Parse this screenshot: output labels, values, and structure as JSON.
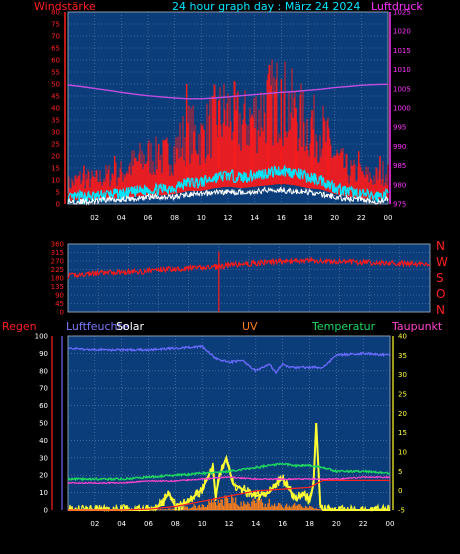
{
  "header": {
    "left_label": "Windstärke",
    "title": "24 hour graph day : März 24 2024",
    "right_label": "Luftdruck"
  },
  "compass": [
    "N",
    "W",
    "S",
    "O",
    "N"
  ],
  "panel3_labels": {
    "regen": "Regen",
    "luftfeuchte": "Luftfeuchte",
    "solar": "Solar",
    "uv": "UV",
    "temperatur": "Temperatur",
    "taupunkt": "Taupunkt"
  },
  "colors": {
    "background": "#000000",
    "plot_bg": "#0b3d7a",
    "grid": "#5f86b7",
    "wind_red": "#ff1a1a",
    "gust_cyan": "#00e5ff",
    "avg_white": "#ffffff",
    "pressure": "#c04de0",
    "humidity": "#6a6aff",
    "solar": "#ffff33",
    "uv": "#ff7f1a",
    "temperature": "#1ed760",
    "dewpoint": "#ff44cc",
    "rain": "#ff2222",
    "title_cyan": "#00e5ff",
    "label_red": "#ff2020",
    "label_magenta": "#ff33ff"
  },
  "chart_data": [
    {
      "type": "line",
      "title": "24 hour graph day : März 24 2024",
      "ylabel": "Windstärke",
      "y2label": "Luftdruck",
      "x_ticks": [
        "02",
        "04",
        "06",
        "08",
        "10",
        "12",
        "14",
        "16",
        "18",
        "20",
        "22",
        "00"
      ],
      "ylim": [
        0,
        80
      ],
      "y_ticks": [
        0,
        5,
        10,
        15,
        20,
        25,
        30,
        35,
        40,
        45,
        50,
        55,
        60,
        65,
        70,
        75,
        80
      ],
      "y2lim": [
        975,
        1025
      ],
      "y2_ticks": [
        975,
        980,
        985,
        990,
        995,
        1000,
        1005,
        1010,
        1015,
        1020,
        1025
      ],
      "series": [
        {
          "name": "Luftdruck",
          "axis": "right",
          "x": [
            0,
            1,
            2,
            3,
            4,
            5,
            6,
            7,
            8,
            9,
            10,
            11,
            12,
            13,
            14,
            15,
            16,
            17,
            18,
            19,
            20,
            21,
            22,
            23,
            24
          ],
          "values": [
            1006.0,
            1005.6,
            1005.1,
            1004.6,
            1004.1,
            1003.6,
            1003.2,
            1002.9,
            1002.6,
            1002.4,
            1002.4,
            1002.6,
            1002.9,
            1003.2,
            1003.5,
            1003.8,
            1004.1,
            1004.3,
            1004.6,
            1004.9,
            1005.3,
            1005.6,
            1005.9,
            1006.1,
            1006.2
          ]
        },
        {
          "name": "Windstärke Böen",
          "axis": "left",
          "x": [
            0,
            1,
            2,
            3,
            4,
            5,
            6,
            7,
            8,
            9,
            10,
            11,
            12,
            13,
            14,
            15,
            16,
            17,
            18,
            19,
            20,
            21,
            22,
            23,
            24
          ],
          "values": [
            8,
            11,
            10,
            12,
            13,
            17,
            20,
            19,
            22,
            30,
            27,
            35,
            38,
            33,
            36,
            42,
            44,
            38,
            32,
            31,
            20,
            14,
            12,
            11,
            14
          ]
        },
        {
          "name": "Windstärke Spitzen",
          "axis": "left",
          "x": [
            1.2,
            3.5,
            6.8,
            8.9,
            10.2,
            11.3,
            12.5,
            13.8,
            15.0,
            16.0,
            17.1,
            18.3,
            19.5,
            21.8,
            23.4
          ],
          "values": [
            16,
            20,
            25,
            50,
            31,
            43,
            50,
            37,
            45,
            52,
            40,
            39,
            32,
            22,
            20
          ]
        },
        {
          "name": "Windstärke Mittel",
          "axis": "left",
          "x": [
            0,
            1,
            2,
            3,
            4,
            5,
            6,
            7,
            8,
            9,
            10,
            11,
            12,
            13,
            14,
            15,
            16,
            17,
            18,
            19,
            20,
            21,
            22,
            23,
            24
          ],
          "values": [
            2,
            3,
            3,
            4,
            4,
            5,
            6,
            6,
            7,
            9,
            9,
            11,
            12,
            11,
            12,
            13,
            14,
            13,
            11,
            10,
            7,
            5,
            4,
            3,
            4
          ]
        },
        {
          "name": "Windstärke Durchschnitt",
          "axis": "left",
          "x": [
            0,
            1,
            2,
            3,
            4,
            5,
            6,
            7,
            8,
            9,
            10,
            11,
            12,
            13,
            14,
            15,
            16,
            17,
            18,
            19,
            20,
            21,
            22,
            23,
            24
          ],
          "values": [
            1,
            1,
            1,
            2,
            2,
            2,
            3,
            3,
            3,
            4,
            4,
            5,
            5,
            5,
            5,
            6,
            6,
            5,
            5,
            4,
            3,
            2,
            2,
            1,
            2
          ]
        }
      ]
    },
    {
      "type": "line",
      "x_ticks": [],
      "ylim": [
        0,
        360
      ],
      "y_ticks": [
        0,
        45,
        90,
        135,
        180,
        225,
        270,
        315,
        360
      ],
      "right_labels": [
        "N",
        "W",
        "S",
        "O",
        "N"
      ],
      "series": [
        {
          "name": "Windrichtung",
          "x": [
            0,
            1,
            2,
            3,
            4,
            5,
            6,
            7,
            8,
            9,
            10,
            11,
            12,
            13,
            14,
            15,
            16,
            17,
            18,
            19,
            20,
            21,
            22,
            23,
            24
          ],
          "values": [
            190,
            200,
            205,
            210,
            212,
            215,
            225,
            228,
            232,
            235,
            240,
            250,
            255,
            262,
            268,
            270,
            272,
            268,
            266,
            265,
            262,
            260,
            258,
            255,
            254
          ]
        }
      ],
      "spikes": [
        {
          "x": 10.0,
          "from": 0,
          "to": 320
        }
      ]
    },
    {
      "type": "line",
      "x_ticks": [
        "02",
        "04",
        "06",
        "08",
        "10",
        "12",
        "14",
        "16",
        "18",
        "20",
        "22",
        "00"
      ],
      "ylim": [
        0,
        100
      ],
      "y_ticks": [
        0,
        10,
        20,
        30,
        40,
        50,
        60,
        70,
        80,
        90,
        100
      ],
      "y2lim": [
        -5,
        40
      ],
      "y2_ticks": [
        -5,
        0,
        5,
        10,
        15,
        20,
        25,
        30,
        35,
        40
      ],
      "series": [
        {
          "name": "Luftfeuchte",
          "axis": "left",
          "x": [
            0,
            2,
            4,
            6,
            8,
            10,
            11,
            12,
            13,
            14,
            15,
            15.5,
            16,
            16.5,
            17,
            18,
            19,
            20,
            22,
            24
          ],
          "values": [
            93,
            92,
            92,
            92,
            93,
            94,
            87,
            85,
            86,
            80,
            84,
            79,
            84,
            82,
            82,
            82,
            82,
            89,
            90,
            89
          ]
        },
        {
          "name": "Temperatur",
          "axis": "right",
          "x": [
            0,
            2,
            4,
            6,
            8,
            10,
            12,
            14,
            15,
            16,
            17,
            18,
            19,
            20,
            22,
            24
          ],
          "values": [
            3,
            3,
            3,
            3.5,
            4,
            4.5,
            5,
            6,
            6.5,
            7,
            6.5,
            6.5,
            6,
            5,
            5,
            4.5
          ]
        },
        {
          "name": "Taupunkt",
          "axis": "right",
          "x": [
            0,
            2,
            4,
            6,
            8,
            10,
            12,
            14,
            16,
            18,
            20,
            22,
            24
          ],
          "values": [
            2,
            2,
            2,
            2.5,
            2.5,
            3,
            3.5,
            3,
            3,
            3,
            3,
            3.5,
            3.5
          ]
        },
        {
          "name": "Regen",
          "axis": "left",
          "x": [
            0,
            4,
            6,
            8,
            10,
            12,
            14,
            16,
            18,
            19,
            20,
            22,
            24
          ],
          "values": [
            0,
            0,
            0.5,
            2,
            5,
            8,
            11,
            12,
            13,
            17,
            17,
            17,
            17
          ]
        },
        {
          "name": "Solar",
          "axis": "left",
          "x": [
            0,
            6,
            7,
            7.5,
            8,
            9,
            10,
            10.8,
            11,
            11.3,
            11.8,
            12.3,
            13,
            14,
            15,
            15.5,
            16,
            16.5,
            17,
            17.5,
            18,
            18.3,
            18.5,
            18.8,
            19,
            20,
            24
          ],
          "values": [
            0,
            0,
            3,
            10,
            2,
            5,
            12,
            25,
            8,
            20,
            30,
            15,
            12,
            8,
            10,
            15,
            18,
            12,
            6,
            10,
            5,
            15,
            50,
            3,
            0,
            0,
            0
          ]
        },
        {
          "name": "UV",
          "axis": "left",
          "x": [
            0,
            6,
            8,
            9,
            10,
            11,
            12,
            13,
            14,
            15,
            16,
            17,
            18,
            19,
            24
          ],
          "values": [
            0,
            0,
            1,
            2,
            4,
            6,
            8,
            4,
            6,
            5,
            3,
            4,
            2,
            0,
            0
          ]
        }
      ]
    }
  ]
}
